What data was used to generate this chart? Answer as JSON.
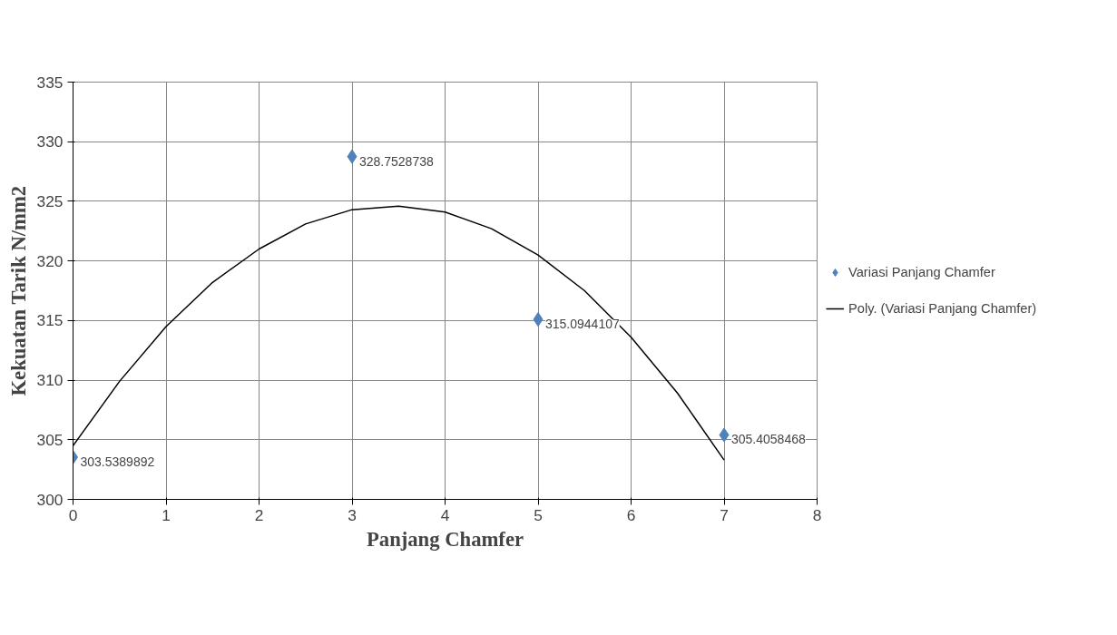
{
  "chart_data": {
    "type": "scatter",
    "xlabel": "Panjang Chamfer",
    "ylabel": "Kekuatan Tarik N/mm2",
    "x": [
      0,
      3,
      5,
      7
    ],
    "series": [
      {
        "name": "Variasi Panjang Chamfer",
        "type": "scatter",
        "color": "#4f81bd",
        "marker": "diamond",
        "values": [
          303.5389892,
          328.7528738,
          315.0944107,
          305.4058468
        ],
        "value_labels": [
          "303.5389892",
          "328.7528738",
          "315.0944107",
          "305.4058468"
        ]
      },
      {
        "name": "Poly. (Variasi Panjang Chamfer)",
        "type": "line",
        "color": "#000000",
        "line_style": "solid",
        "x": [
          0,
          0.5,
          1,
          1.5,
          2,
          2.5,
          3,
          3.5,
          4,
          4.5,
          5,
          5.5,
          6,
          6.5,
          7
        ],
        "values": [
          304.5,
          309.9,
          314.5,
          318.2,
          321.0,
          323.1,
          324.3,
          324.6,
          324.1,
          322.7,
          320.5,
          317.5,
          313.6,
          308.9,
          303.3
        ]
      }
    ],
    "xlim": [
      0,
      8
    ],
    "xticks": [
      0,
      1,
      2,
      3,
      4,
      5,
      6,
      7,
      8
    ],
    "ylim": [
      300,
      335
    ],
    "yticks": [
      300,
      305,
      310,
      315,
      320,
      325,
      330,
      335
    ],
    "grid": true,
    "legend": "right"
  }
}
